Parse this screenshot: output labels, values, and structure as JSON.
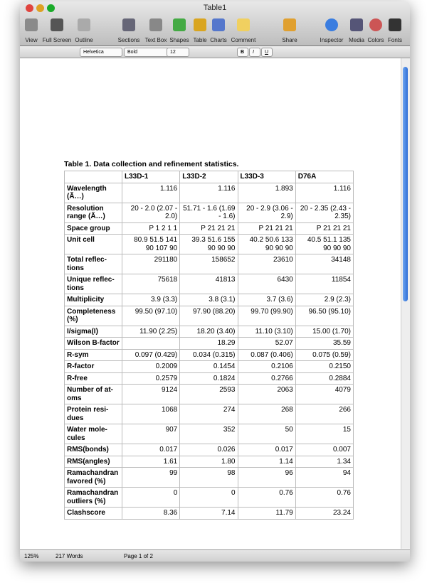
{
  "window": {
    "title": "Table1"
  },
  "toolbar": {
    "items": [
      "View",
      "Full Screen",
      "Outline",
      "Sections",
      "Text Box",
      "Shapes",
      "Table",
      "Charts",
      "Comment",
      "Share",
      "Inspector",
      "Media",
      "Colors",
      "Fonts"
    ]
  },
  "format_bar": {
    "font": "Helvetica",
    "style": "Bold",
    "size": "12",
    "bold": "B",
    "italic": "I",
    "underline": "U"
  },
  "document": {
    "caption": "Table 1.  Data collection and refinement statistics.",
    "table": {
      "header": [
        "L33D-1",
        "L33D-2",
        "L33D-3",
        "D76A"
      ],
      "rows": [
        [
          "Wavelength (Ã…)",
          "1.116",
          "1.116",
          "1.893",
          "1.116"
        ],
        [
          "Resolution range (Ã…)",
          "20 - 2.0 (2.07 - 2.0)",
          "51.71 - 1.6 (1.69 - 1.6)",
          "20 - 2.9 (3.06 - 2.9)",
          "20 - 2.35 (2.43 - 2.35)"
        ],
        [
          "Space group",
          "P 1 2 1 1",
          "P 21 21 21",
          "P 21 21 21",
          "P 21 21 21"
        ],
        [
          "Unit cell",
          "80.9 51.5 141 90 107 90",
          "39.3 51.6 155 90 90 90",
          "40.2 50.6 133 90 90 90",
          "40.5 51.1 135 90 90 90"
        ],
        [
          "Total reflec-tions",
          "291180",
          "158652",
          "23610",
          "34148"
        ],
        [
          "Unique reflec-tions",
          "75618",
          "41813",
          "6430",
          "11854"
        ],
        [
          "Multiplicity",
          "3.9 (3.3)",
          "3.8 (3.1)",
          "3.7 (3.6)",
          "2.9 (2.3)"
        ],
        [
          "Completeness (%)",
          "99.50 (97.10)",
          "97.90 (88.20)",
          "99.70 (99.90)",
          "96.50 (95.10)"
        ],
        [
          "I/sigma(I)",
          "11.90 (2.25)",
          "18.20 (3.40)",
          "11.10 (3.10)",
          "15.00 (1.70)"
        ],
        [
          "Wilson B-factor",
          null,
          "18.29",
          "52.07",
          "35.59"
        ],
        [
          "R-sym",
          "0.097 (0.429)",
          "0.034 (0.315)",
          "0.087 (0.406)",
          "0.075 (0.59)"
        ],
        [
          "R-factor",
          "0.2009",
          "0.1454",
          "0.2106",
          "0.2150"
        ],
        [
          "R-free",
          "0.2579",
          "0.1824",
          "0.2766",
          "0.2884"
        ],
        [
          "Number of at-oms",
          "9124",
          "2593",
          "2063",
          "4079"
        ],
        [
          "Protein resi-dues",
          "1068",
          "274",
          "268",
          "266"
        ],
        [
          "Water mole-cules",
          "907",
          "352",
          "50",
          "15"
        ],
        [
          "RMS(bonds)",
          "0.017",
          "0.026",
          "0.017",
          "0.007"
        ],
        [
          "RMS(angles)",
          "1.61",
          "1.80",
          "1.14",
          "1.34"
        ],
        [
          "Ramachandran favored (%)",
          "99",
          "98",
          "96",
          "94"
        ],
        [
          "Ramachandran outliers (%)",
          "0",
          "0",
          "0.76",
          "0.76"
        ],
        [
          "Clashscore",
          "8.36",
          "7.14",
          "11.79",
          "23.24"
        ]
      ]
    }
  },
  "status_bar": {
    "zoom": "125%",
    "words": "217 Words",
    "page": "Page 1 of 2"
  }
}
